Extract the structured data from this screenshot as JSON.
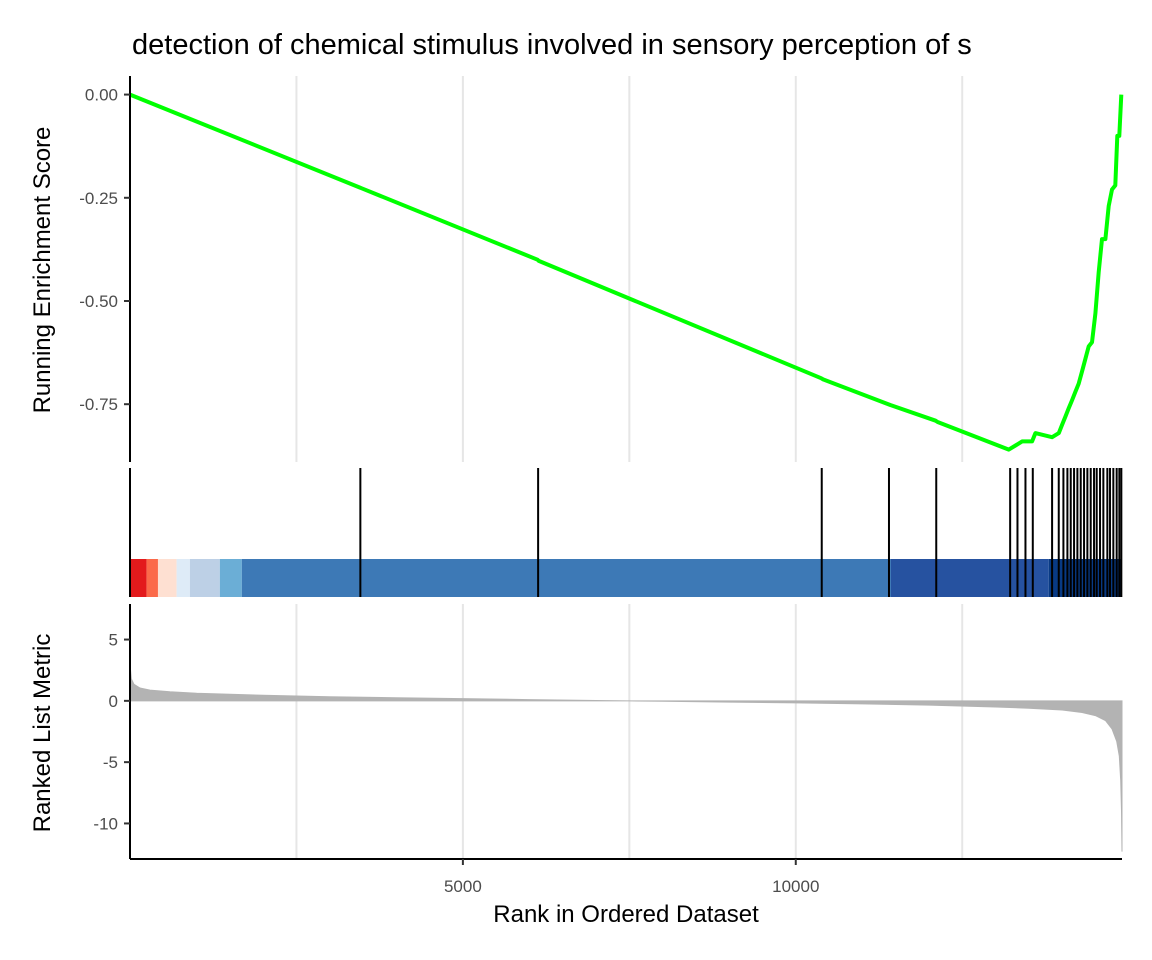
{
  "chart_data": {
    "type": "line",
    "title": "detection of chemical stimulus involved in sensory perception of s",
    "xlabel": "Rank in Ordered Dataset",
    "xlim": [
      0,
      14900
    ],
    "x_ticks": [
      5000,
      10000
    ],
    "x_tick_labels": [
      "5000",
      "10000"
    ],
    "x_grid": [
      2500,
      5000,
      7500,
      10000,
      12500
    ],
    "grid": "vertical-major-and-minor",
    "panels": {
      "running_score": {
        "ylabel": "Running Enrichment Score",
        "ylim": [
          -0.89,
          0.045
        ],
        "y_ticks": [
          0.0,
          -0.25,
          -0.5,
          -0.75
        ],
        "y_tick_labels": [
          "0.00",
          "-0.25",
          "-0.50",
          "-0.75"
        ],
        "color": "#00ff00",
        "min_score": -0.86,
        "min_rank": 13200,
        "points": [
          [
            0,
            0.0
          ],
          [
            3450,
            -0.225
          ],
          [
            3480,
            -0.227
          ],
          [
            6120,
            -0.4
          ],
          [
            6140,
            -0.403
          ],
          [
            10380,
            -0.687
          ],
          [
            10410,
            -0.69
          ],
          [
            11390,
            -0.75
          ],
          [
            11420,
            -0.752
          ],
          [
            12100,
            -0.79
          ],
          [
            12130,
            -0.793
          ],
          [
            13200,
            -0.86
          ],
          [
            13300,
            -0.85
          ],
          [
            13400,
            -0.84
          ],
          [
            13550,
            -0.84
          ],
          [
            13600,
            -0.82
          ],
          [
            13850,
            -0.83
          ],
          [
            13950,
            -0.82
          ],
          [
            14000,
            -0.8
          ],
          [
            14050,
            -0.78
          ],
          [
            14100,
            -0.76
          ],
          [
            14150,
            -0.74
          ],
          [
            14200,
            -0.72
          ],
          [
            14250,
            -0.7
          ],
          [
            14300,
            -0.67
          ],
          [
            14350,
            -0.64
          ],
          [
            14400,
            -0.61
          ],
          [
            14450,
            -0.6
          ],
          [
            14500,
            -0.53
          ],
          [
            14550,
            -0.43
          ],
          [
            14600,
            -0.35
          ],
          [
            14650,
            -0.35
          ],
          [
            14700,
            -0.27
          ],
          [
            14750,
            -0.23
          ],
          [
            14800,
            -0.22
          ],
          [
            14830,
            -0.1
          ],
          [
            14860,
            -0.1
          ],
          [
            14890,
            0.0
          ]
        ]
      },
      "hit_ranks": [
        3460,
        6130,
        10390,
        11400,
        12110,
        13220,
        13330,
        13450,
        13560,
        13850,
        13950,
        14020,
        14080,
        14130,
        14180,
        14230,
        14280,
        14330,
        14380,
        14430,
        14480,
        14520,
        14570,
        14620,
        14680,
        14720,
        14770,
        14820,
        14860,
        14890
      ],
      "color_bar": [
        {
          "from": 0,
          "to": 250,
          "color": "#e31a1c"
        },
        {
          "from": 250,
          "to": 420,
          "color": "#fb6a4a"
        },
        {
          "from": 420,
          "to": 700,
          "color": "#fee0d2"
        },
        {
          "from": 700,
          "to": 900,
          "color": "#deebf7"
        },
        {
          "from": 900,
          "to": 1350,
          "color": "#bdd0e6"
        },
        {
          "from": 1350,
          "to": 1680,
          "color": "#6baed6"
        },
        {
          "from": 1680,
          "to": 11430,
          "color": "#3d79b6"
        },
        {
          "from": 11430,
          "to": 13800,
          "color": "#2652a0"
        },
        {
          "from": 13800,
          "to": 14900,
          "color": "#083a84"
        }
      ],
      "ranked_metric": {
        "ylabel": "Ranked List Metric",
        "ylim": [
          -12.9,
          7.9
        ],
        "y_ticks": [
          5,
          0,
          -5,
          -10
        ],
        "y_tick_labels": [
          "5",
          "0",
          "-5",
          "-10"
        ],
        "fill": "#b3b3b3",
        "points": [
          [
            0,
            3.0
          ],
          [
            20,
            1.8
          ],
          [
            60,
            1.35
          ],
          [
            150,
            1.05
          ],
          [
            300,
            0.88
          ],
          [
            600,
            0.74
          ],
          [
            1000,
            0.62
          ],
          [
            2000,
            0.45
          ],
          [
            3000,
            0.33
          ],
          [
            4000,
            0.26
          ],
          [
            5000,
            0.18
          ],
          [
            6000,
            0.1
          ],
          [
            7000,
            0.03
          ],
          [
            7500,
            0.0
          ],
          [
            8000,
            -0.04
          ],
          [
            9000,
            -0.1
          ],
          [
            10000,
            -0.17
          ],
          [
            11000,
            -0.25
          ],
          [
            12000,
            -0.35
          ],
          [
            13000,
            -0.5
          ],
          [
            13500,
            -0.6
          ],
          [
            14000,
            -0.75
          ],
          [
            14300,
            -0.95
          ],
          [
            14500,
            -1.2
          ],
          [
            14650,
            -1.6
          ],
          [
            14750,
            -2.3
          ],
          [
            14820,
            -3.3
          ],
          [
            14860,
            -4.5
          ],
          [
            14880,
            -6.5
          ],
          [
            14893,
            -9.0
          ],
          [
            14900,
            -12.3
          ]
        ]
      }
    }
  }
}
